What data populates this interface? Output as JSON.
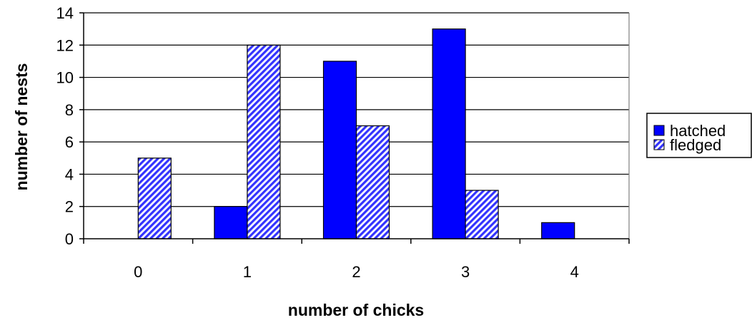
{
  "chart_data": {
    "type": "bar",
    "title": "",
    "xlabel": "number of chicks",
    "ylabel": "number of nests",
    "categories": [
      "0",
      "1",
      "2",
      "3",
      "4"
    ],
    "series": [
      {
        "name": "hatched",
        "values": [
          0,
          2,
          11,
          13,
          1
        ],
        "color": "#0000FF",
        "pattern": "solid"
      },
      {
        "name": "fledged",
        "values": [
          5,
          12,
          7,
          3,
          0
        ],
        "color": "#3333FF",
        "pattern": "diagonal-hatch"
      }
    ],
    "ylim": [
      0,
      14
    ],
    "yticks": [
      "0",
      "2",
      "4",
      "6",
      "8",
      "10",
      "12",
      "14"
    ],
    "grid": true,
    "legend_position": "right"
  }
}
